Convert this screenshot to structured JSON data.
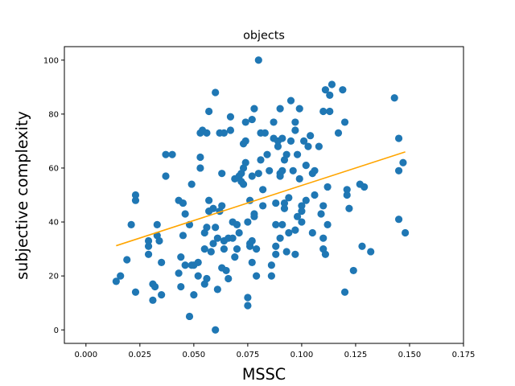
{
  "chart_data": {
    "type": "scatter",
    "title": "objects",
    "xlabel": "MSSC",
    "ylabel": "subjective complexity",
    "xlim": [
      -0.01,
      0.175
    ],
    "ylim": [
      -5,
      105
    ],
    "xticks": [
      "0.000",
      "0.025",
      "0.050",
      "0.075",
      "0.100",
      "0.125",
      "0.150",
      "0.175"
    ],
    "xtick_values": [
      0.0,
      0.025,
      0.05,
      0.075,
      0.1,
      0.125,
      0.15,
      0.175
    ],
    "yticks": [
      "0",
      "20",
      "40",
      "60",
      "80",
      "100"
    ],
    "ytick_values": [
      0,
      20,
      40,
      60,
      80,
      100
    ],
    "grid": false,
    "colors": {
      "points": "#1f77b4",
      "fit_line": "#ffa500",
      "axes": "#000000"
    },
    "series": [
      {
        "kind": "points",
        "points": [
          [
            0.014,
            18
          ],
          [
            0.016,
            20
          ],
          [
            0.019,
            26
          ],
          [
            0.021,
            39
          ],
          [
            0.023,
            48
          ],
          [
            0.023,
            50
          ],
          [
            0.023,
            14
          ],
          [
            0.029,
            31
          ],
          [
            0.029,
            28
          ],
          [
            0.029,
            33
          ],
          [
            0.031,
            17
          ],
          [
            0.031,
            11
          ],
          [
            0.032,
            16
          ],
          [
            0.033,
            35
          ],
          [
            0.033,
            39
          ],
          [
            0.034,
            33
          ],
          [
            0.035,
            25
          ],
          [
            0.035,
            13
          ],
          [
            0.037,
            57
          ],
          [
            0.037,
            65
          ],
          [
            0.04,
            65
          ],
          [
            0.043,
            21
          ],
          [
            0.043,
            48
          ],
          [
            0.044,
            16
          ],
          [
            0.044,
            27
          ],
          [
            0.045,
            35
          ],
          [
            0.045,
            47
          ],
          [
            0.046,
            43
          ],
          [
            0.046,
            24
          ],
          [
            0.048,
            5
          ],
          [
            0.048,
            39
          ],
          [
            0.049,
            54
          ],
          [
            0.049,
            24
          ],
          [
            0.05,
            13
          ],
          [
            0.05,
            24
          ],
          [
            0.052,
            25
          ],
          [
            0.052,
            20
          ],
          [
            0.053,
            64
          ],
          [
            0.053,
            60
          ],
          [
            0.053,
            73
          ],
          [
            0.054,
            74
          ],
          [
            0.055,
            36
          ],
          [
            0.055,
            17
          ],
          [
            0.055,
            30
          ],
          [
            0.056,
            19
          ],
          [
            0.056,
            38
          ],
          [
            0.056,
            73
          ],
          [
            0.057,
            81
          ],
          [
            0.057,
            48
          ],
          [
            0.057,
            44
          ],
          [
            0.058,
            29
          ],
          [
            0.059,
            45
          ],
          [
            0.059,
            32
          ],
          [
            0.06,
            38
          ],
          [
            0.06,
            88
          ],
          [
            0.06,
            0
          ],
          [
            0.061,
            15
          ],
          [
            0.061,
            34
          ],
          [
            0.062,
            44
          ],
          [
            0.062,
            73
          ],
          [
            0.063,
            46
          ],
          [
            0.063,
            23
          ],
          [
            0.063,
            58
          ],
          [
            0.064,
            33
          ],
          [
            0.064,
            73
          ],
          [
            0.064,
            30
          ],
          [
            0.065,
            22
          ],
          [
            0.066,
            34
          ],
          [
            0.066,
            19
          ],
          [
            0.067,
            74
          ],
          [
            0.067,
            79
          ],
          [
            0.068,
            34
          ],
          [
            0.068,
            40
          ],
          [
            0.069,
            56
          ],
          [
            0.069,
            27
          ],
          [
            0.07,
            30
          ],
          [
            0.07,
            39
          ],
          [
            0.071,
            36
          ],
          [
            0.071,
            57
          ],
          [
            0.072,
            58
          ],
          [
            0.072,
            55
          ],
          [
            0.073,
            54
          ],
          [
            0.073,
            69
          ],
          [
            0.073,
            60
          ],
          [
            0.074,
            77
          ],
          [
            0.074,
            70
          ],
          [
            0.074,
            62
          ],
          [
            0.075,
            12
          ],
          [
            0.075,
            9
          ],
          [
            0.075,
            40
          ],
          [
            0.076,
            31
          ],
          [
            0.076,
            48
          ],
          [
            0.076,
            32
          ],
          [
            0.077,
            33
          ],
          [
            0.077,
            25
          ],
          [
            0.077,
            57
          ],
          [
            0.077,
            78
          ],
          [
            0.078,
            82
          ],
          [
            0.078,
            42
          ],
          [
            0.078,
            43
          ],
          [
            0.079,
            20
          ],
          [
            0.079,
            30
          ],
          [
            0.08,
            100
          ],
          [
            0.08,
            58
          ],
          [
            0.081,
            63
          ],
          [
            0.081,
            73
          ],
          [
            0.082,
            52
          ],
          [
            0.082,
            46
          ],
          [
            0.083,
            73
          ],
          [
            0.084,
            65
          ],
          [
            0.085,
            59
          ],
          [
            0.086,
            24
          ],
          [
            0.086,
            20
          ],
          [
            0.087,
            77
          ],
          [
            0.087,
            71
          ],
          [
            0.088,
            39
          ],
          [
            0.088,
            47
          ],
          [
            0.088,
            28
          ],
          [
            0.088,
            31
          ],
          [
            0.089,
            68
          ],
          [
            0.089,
            70
          ],
          [
            0.09,
            34
          ],
          [
            0.09,
            57
          ],
          [
            0.09,
            82
          ],
          [
            0.09,
            58
          ],
          [
            0.091,
            39
          ],
          [
            0.091,
            59
          ],
          [
            0.091,
            71
          ],
          [
            0.092,
            45
          ],
          [
            0.092,
            63
          ],
          [
            0.092,
            47
          ],
          [
            0.093,
            65
          ],
          [
            0.093,
            29
          ],
          [
            0.094,
            49
          ],
          [
            0.094,
            36
          ],
          [
            0.095,
            70
          ],
          [
            0.095,
            85
          ],
          [
            0.096,
            59
          ],
          [
            0.097,
            28
          ],
          [
            0.097,
            37
          ],
          [
            0.097,
            74
          ],
          [
            0.097,
            77
          ],
          [
            0.098,
            65
          ],
          [
            0.098,
            42
          ],
          [
            0.099,
            56
          ],
          [
            0.099,
            82
          ],
          [
            0.1,
            46
          ],
          [
            0.1,
            40
          ],
          [
            0.1,
            44
          ],
          [
            0.101,
            70
          ],
          [
            0.102,
            61
          ],
          [
            0.102,
            48
          ],
          [
            0.103,
            68
          ],
          [
            0.104,
            72
          ],
          [
            0.105,
            58
          ],
          [
            0.105,
            36
          ],
          [
            0.106,
            59
          ],
          [
            0.106,
            50
          ],
          [
            0.108,
            68
          ],
          [
            0.109,
            43
          ],
          [
            0.11,
            34
          ],
          [
            0.11,
            81
          ],
          [
            0.11,
            46
          ],
          [
            0.11,
            30
          ],
          [
            0.111,
            28
          ],
          [
            0.111,
            89
          ],
          [
            0.112,
            39
          ],
          [
            0.112,
            53
          ],
          [
            0.113,
            87
          ],
          [
            0.113,
            81
          ],
          [
            0.114,
            91
          ],
          [
            0.117,
            73
          ],
          [
            0.119,
            89
          ],
          [
            0.12,
            77
          ],
          [
            0.12,
            14
          ],
          [
            0.121,
            52
          ],
          [
            0.121,
            50
          ],
          [
            0.122,
            45
          ],
          [
            0.124,
            22
          ],
          [
            0.127,
            54
          ],
          [
            0.128,
            31
          ],
          [
            0.129,
            53
          ],
          [
            0.132,
            29
          ],
          [
            0.143,
            86
          ],
          [
            0.145,
            59
          ],
          [
            0.145,
            71
          ],
          [
            0.145,
            41
          ],
          [
            0.147,
            62
          ],
          [
            0.148,
            36
          ]
        ]
      },
      {
        "kind": "fit_line",
        "x": [
          0.014,
          0.148
        ],
        "y": [
          31.2,
          66.0
        ]
      }
    ]
  }
}
